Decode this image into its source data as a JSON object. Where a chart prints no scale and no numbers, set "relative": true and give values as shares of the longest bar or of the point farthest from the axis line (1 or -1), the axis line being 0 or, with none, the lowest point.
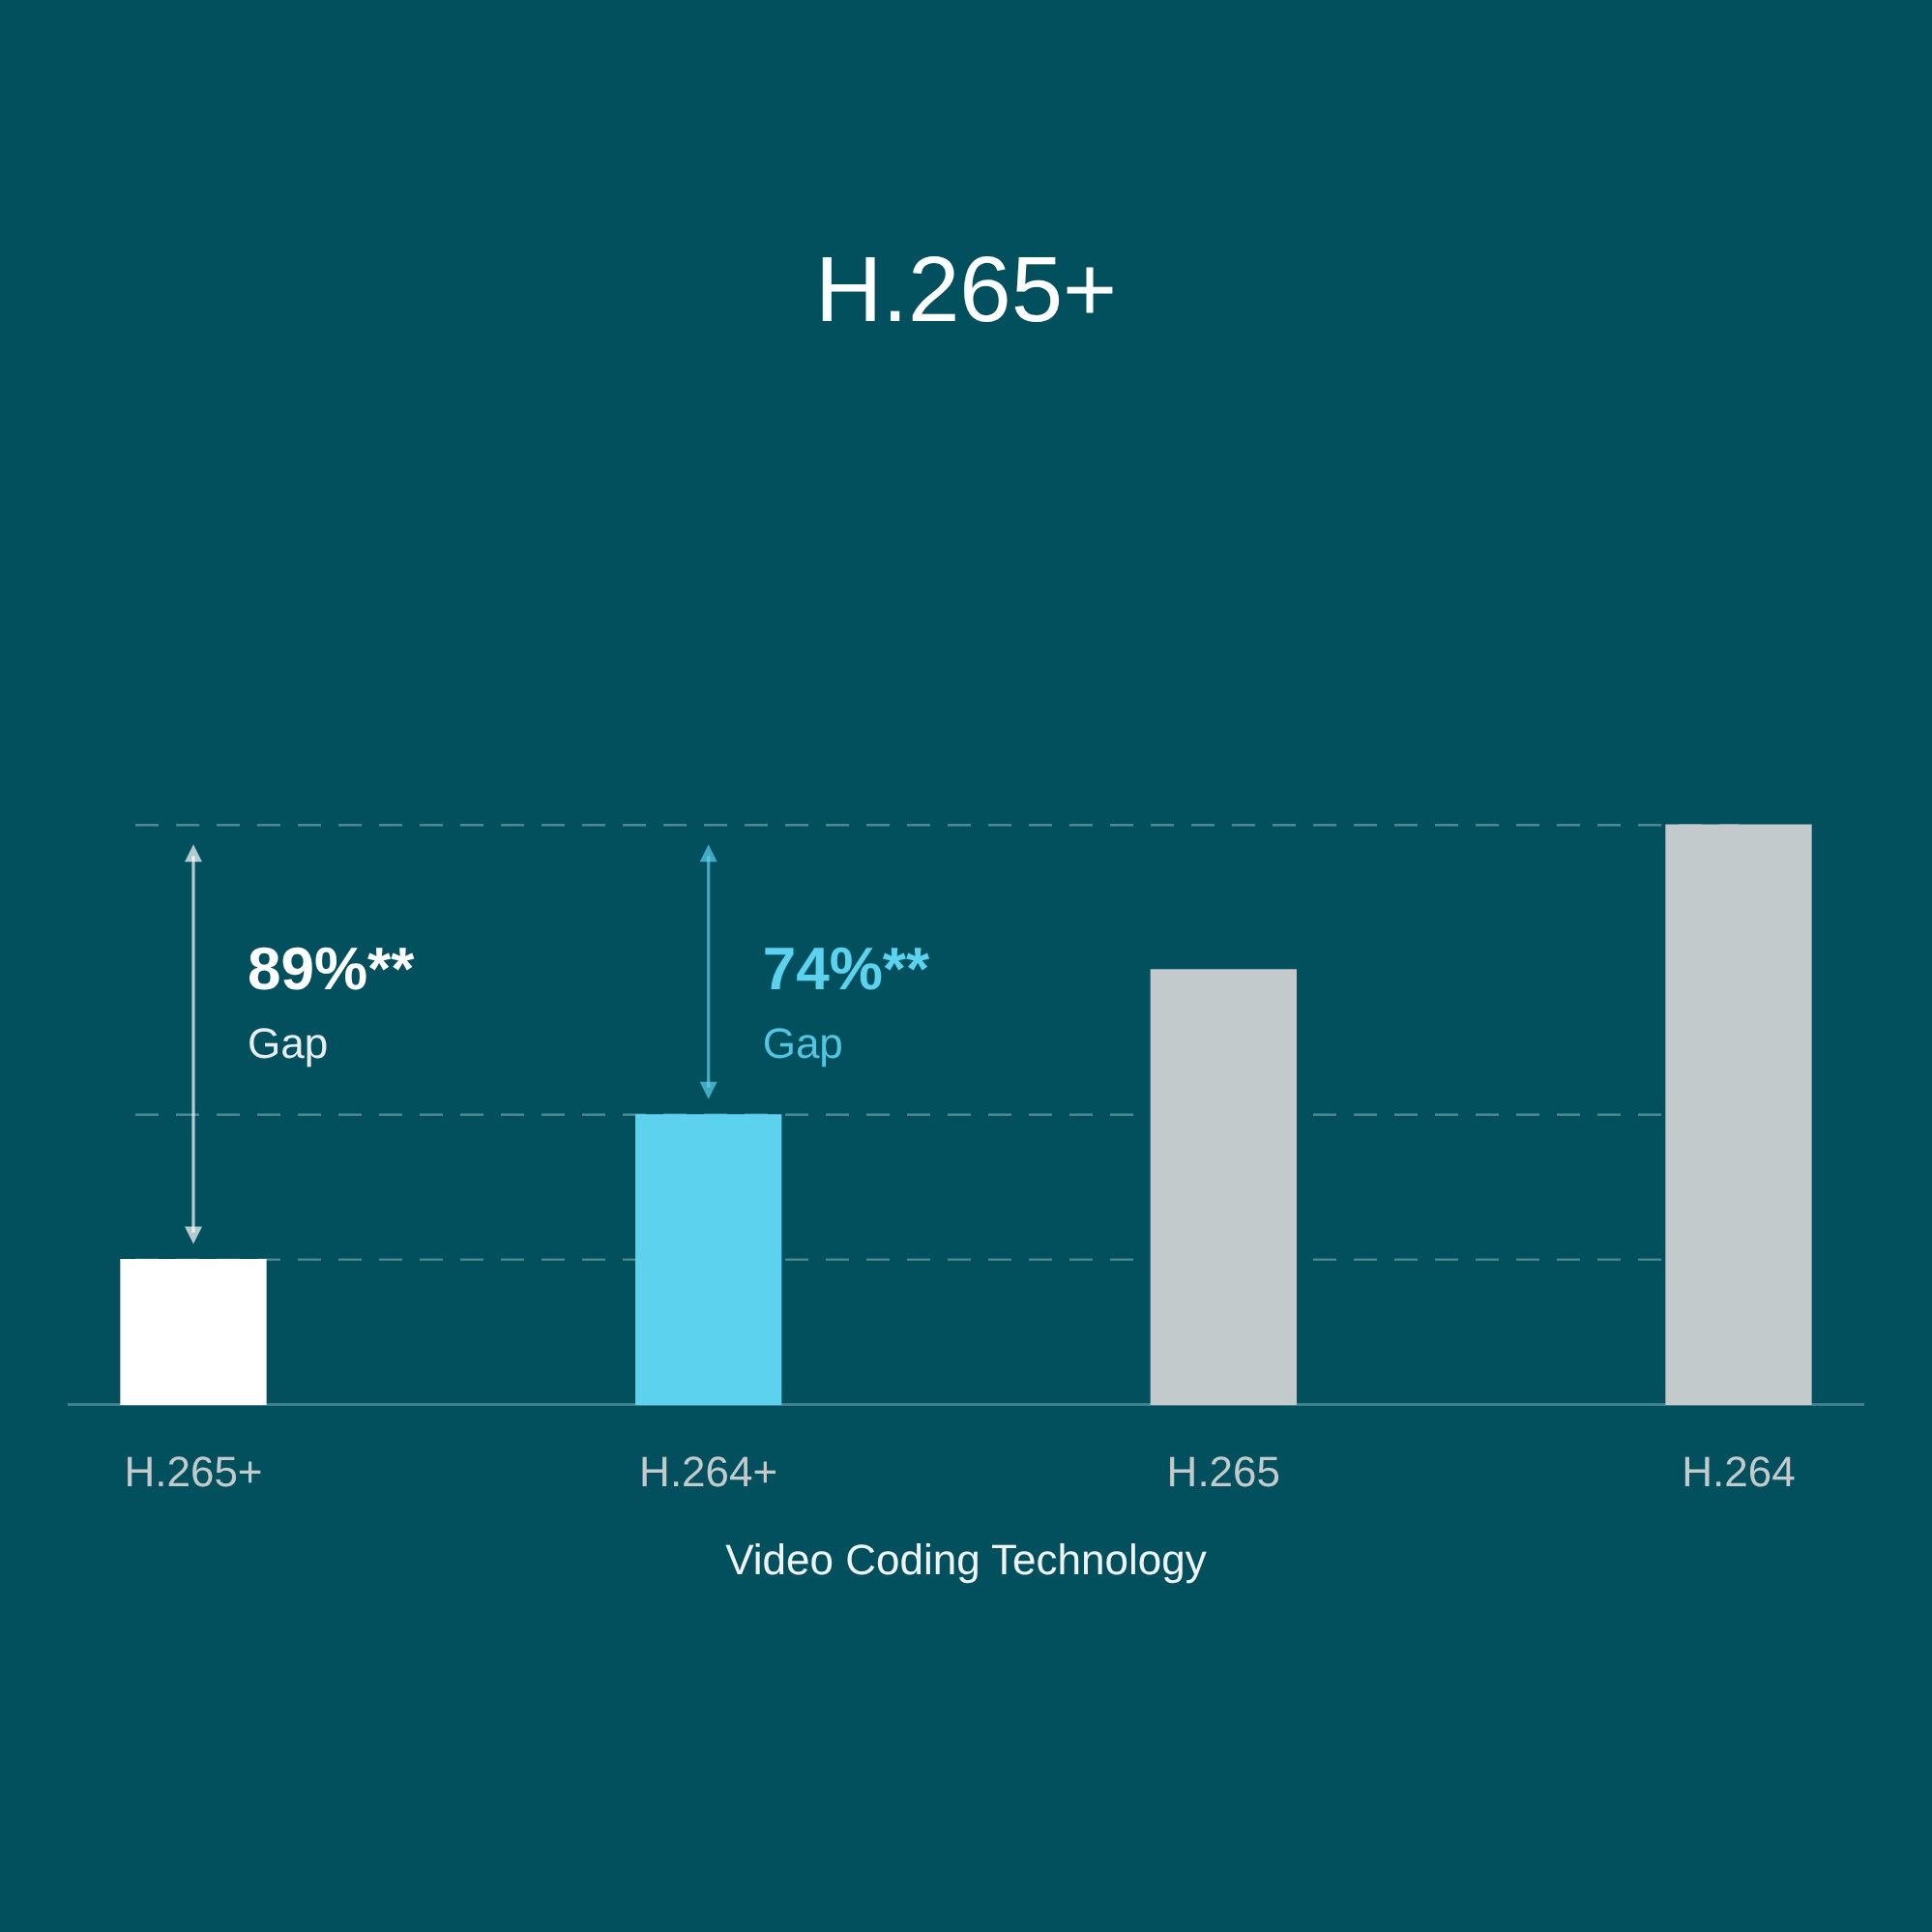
{
  "chart_data": {
    "type": "bar",
    "title": "H.265+",
    "xlabel": "Video Coding Technology",
    "categories": [
      "H.265+",
      "H.264+",
      "H.265",
      "H.264"
    ],
    "values": [
      0.25,
      0.5,
      0.75,
      1
    ],
    "colors": [
      "#ffffff",
      "#5cd2ee",
      "#c3cacc",
      "#c3cacc"
    ],
    "relative": true,
    "ref_lines": [
      {
        "axis": "y",
        "value": 1,
        "color": "#4f8792",
        "line_style": "dashed"
      },
      {
        "axis": "y",
        "value": 0.5,
        "color": "#4f8792",
        "line_style": "dashed"
      },
      {
        "axis": "y",
        "value": 0.25,
        "color": "#4f8792",
        "line_style": "dashed"
      }
    ],
    "annotations": [
      "89%**\nGap",
      "74%**\nGap"
    ]
  }
}
